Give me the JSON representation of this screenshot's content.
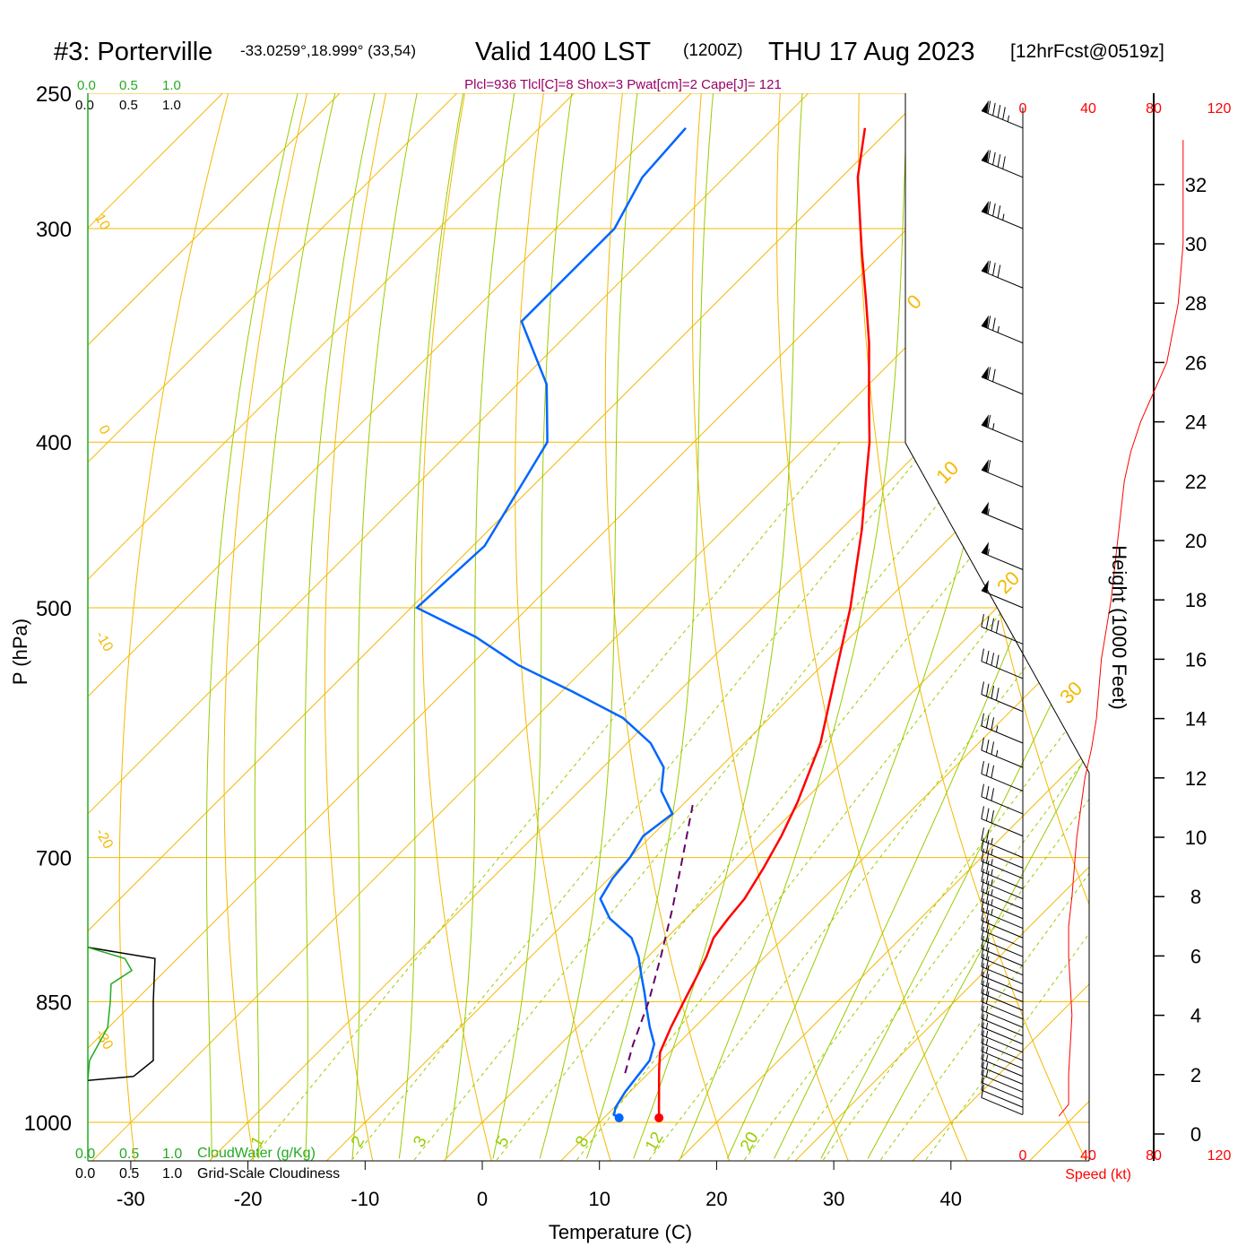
{
  "header": {
    "station": "#3: Porterville",
    "coords": "-33.0259°,18.999° (33,54)",
    "valid": "Valid 1400 LST",
    "zulu": "(1200Z)",
    "date": "THU 17 Aug 2023",
    "forecast": "[12hrFcst@0519z]",
    "indices": "Plcl=936 Tlcl[C]=8 Shox=3 Pwat[cm]=2 Cape[J]= 121"
  },
  "colors": {
    "temperature": "#ff0000",
    "dewpoint": "#0066ff",
    "parcel": "#660066",
    "isotherm": "#f5b800",
    "dry_adiabat": "#f5b800",
    "moist_adiabat": "#99cc00",
    "mixing_ratio": "#99cc00",
    "cloud_water": "#22aa22",
    "indices_text": "#990066"
  },
  "chart_data": {
    "type": "line",
    "title": "Skew-T sounding",
    "xlabel": "Temperature (C)",
    "ylabel": "P (hPa)",
    "right_label": "Height (1000 Feet)",
    "x_ticks": [
      -30,
      -20,
      -10,
      0,
      10,
      20,
      30,
      40
    ],
    "p_ticks": [
      250,
      300,
      400,
      500,
      700,
      850,
      1000
    ],
    "height_ticks": [
      0,
      2,
      4,
      6,
      8,
      10,
      12,
      14,
      16,
      18,
      20,
      22,
      24,
      26,
      28,
      30,
      32
    ],
    "speed_ticks": [
      0,
      40,
      80,
      120
    ],
    "speed_label": "Speed (kt)",
    "cloud_ticks": [
      "0.0",
      "0.5",
      "1.0"
    ],
    "cloud_water_label": "CloudWater (g/Kg)",
    "cloudiness_label": "Grid-Scale Cloudiness",
    "isotherm_labels": [
      "10",
      "0",
      "-10",
      "-20",
      "-30",
      "0",
      "10",
      "20",
      "30"
    ],
    "mixing_ratio_labels": [
      "1",
      "2",
      "3",
      "5",
      "8",
      "12",
      "20"
    ],
    "series": [
      {
        "name": "Temperature",
        "pressure": [
          994,
          980,
          960,
          945,
          930,
          910,
          880,
          850,
          820,
          800,
          780,
          760,
          740,
          710,
          680,
          650,
          600,
          550,
          500,
          450,
          420,
          400,
          380,
          350,
          330,
          310,
          300,
          280,
          262
        ],
        "temp": [
          14.7,
          13.8,
          12.5,
          11.5,
          10.5,
          9.2,
          8.0,
          6.9,
          5.8,
          5.0,
          4.0,
          3.6,
          3.3,
          2.3,
          1.1,
          -0.4,
          -3.5,
          -7.8,
          -12.5,
          -18.2,
          -22.2,
          -25.0,
          -28.3,
          -33.5,
          -37.5,
          -41.8,
          -44.0,
          -48.6,
          -52.2
        ]
      },
      {
        "name": "Dewpoint",
        "pressure": [
          994,
          990,
          980,
          960,
          940,
          920,
          900,
          880,
          860,
          840,
          820,
          800,
          780,
          760,
          740,
          720,
          700,
          680,
          660,
          640,
          620,
          600,
          580,
          560,
          540,
          520,
          500,
          460,
          400,
          370,
          340,
          320,
          300,
          280,
          262
        ],
        "temp": [
          11.3,
          10.6,
          10.1,
          9.6,
          9.3,
          9.0,
          8.0,
          6.2,
          4.5,
          2.8,
          1.0,
          -0.8,
          -3.0,
          -6.5,
          -9.0,
          -9.7,
          -10.0,
          -10.7,
          -10.1,
          -13.0,
          -14.8,
          -18.0,
          -22.5,
          -29.0,
          -36.0,
          -42.0,
          -49.5,
          -49.0,
          -52.5,
          -57.5,
          -65.0,
          -65.0,
          -65.0,
          -67.0,
          -67.5
        ]
      },
      {
        "name": "Parcel",
        "pressure": [
          936,
          900,
          850,
          800,
          750,
          700,
          650
        ],
        "temp": [
          8.0,
          6.2,
          3.9,
          1.1,
          -2.0,
          -5.5,
          -9.3
        ]
      }
    ],
    "surface_markers": [
      {
        "name": "Temperature",
        "pressure": 994,
        "temp": 14.7
      },
      {
        "name": "Dewpoint",
        "pressure": 994,
        "temp": 11.3
      }
    ],
    "cloud_water": {
      "pressure": [
        945,
        920,
        880,
        850,
        830,
        815,
        802,
        790
      ],
      "value": [
        0.0,
        0.02,
        0.23,
        0.26,
        0.27,
        0.51,
        0.43,
        0.0
      ]
    },
    "cloudiness": {
      "pressure": [
        945,
        940,
        920,
        850,
        802,
        790
      ],
      "value": [
        0.0,
        0.53,
        0.76,
        0.76,
        0.78,
        0.0
      ]
    },
    "wind_speed_profile": {
      "height_kft": [
        0.6,
        1.0,
        2.0,
        4.0,
        6.0,
        7.0,
        8.0,
        10.0,
        12.0,
        13.0,
        14.0,
        16.0,
        18.0,
        20.0,
        22.0,
        23.0,
        24.0,
        25.0,
        26.0,
        28.0,
        30.0,
        33.5
      ],
      "speed_kt": [
        22,
        28,
        28,
        30,
        28,
        28,
        30,
        33,
        38,
        42,
        45,
        48,
        54,
        58,
        62,
        66,
        72,
        80,
        88,
        95,
        98,
        98
      ]
    },
    "wind_barbs": {
      "pressure": [
        990,
        980,
        970,
        960,
        950,
        940,
        930,
        920,
        910,
        900,
        890,
        880,
        870,
        860,
        850,
        840,
        830,
        820,
        810,
        800,
        790,
        780,
        770,
        760,
        750,
        740,
        730,
        720,
        710,
        700,
        680,
        660,
        640,
        620,
        600,
        575,
        550,
        525,
        500,
        475,
        450,
        425,
        400,
        375,
        350,
        325,
        300,
        280,
        262
      ],
      "speed_kt": [
        12,
        13,
        14,
        15,
        16,
        16,
        17,
        17,
        18,
        18,
        19,
        19,
        20,
        20,
        21,
        21,
        22,
        22,
        23,
        23,
        24,
        24,
        25,
        25,
        26,
        26,
        27,
        27,
        28,
        28,
        30,
        32,
        34,
        36,
        38,
        40,
        42,
        44,
        50,
        55,
        55,
        60,
        65,
        70,
        75,
        80,
        85,
        90,
        95
      ]
    }
  }
}
